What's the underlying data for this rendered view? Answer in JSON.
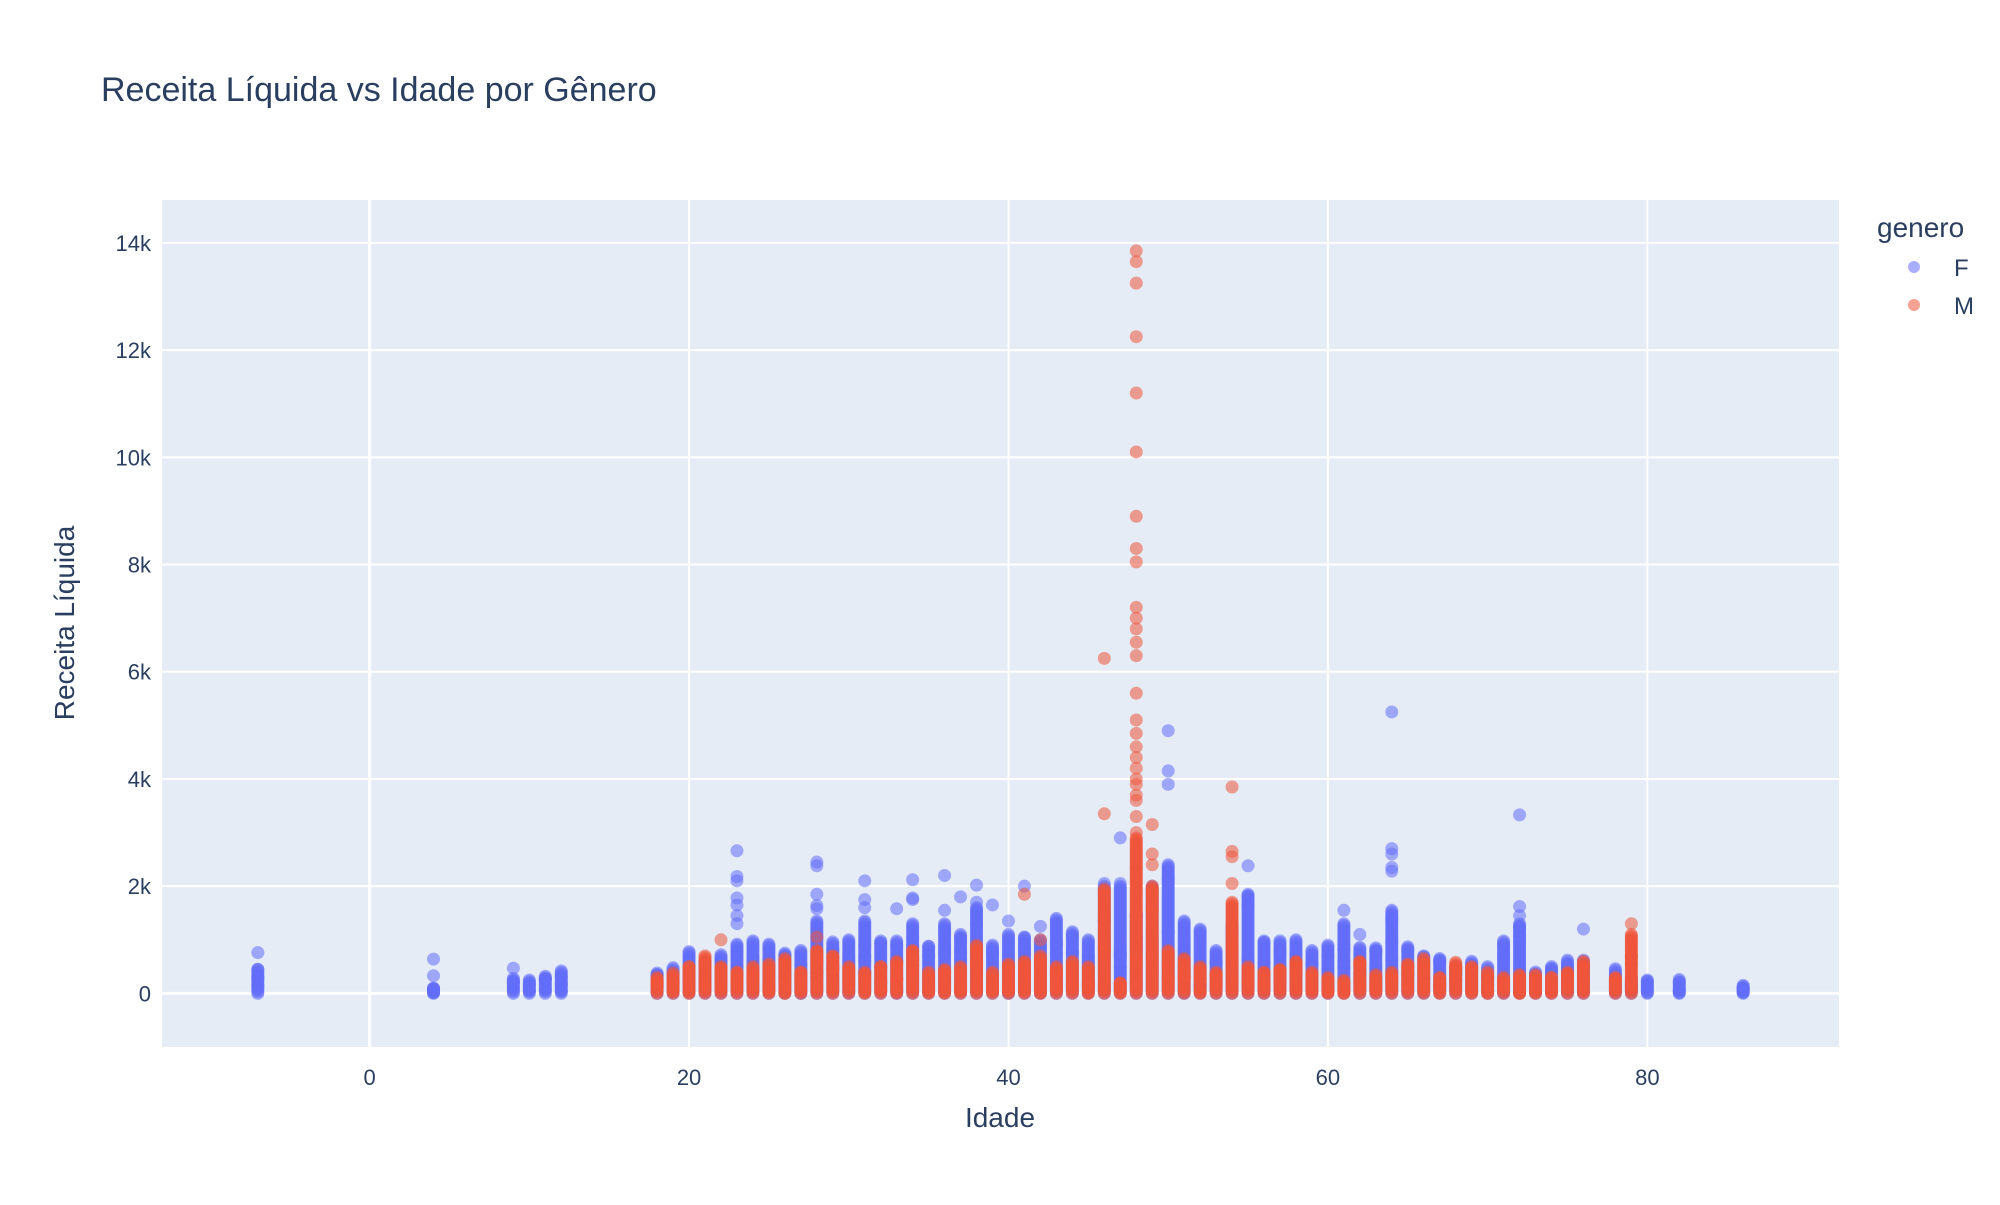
{
  "chart_data": {
    "type": "scatter",
    "title": "Receita Líquida vs Idade por Gênero",
    "xlabel": "Idade",
    "ylabel": "Receita Líquida",
    "xlim": [
      -13,
      92
    ],
    "ylim": [
      -1000,
      14800
    ],
    "x_ticks": [
      0,
      20,
      40,
      60,
      80
    ],
    "y_ticks": [
      0,
      2000,
      4000,
      6000,
      8000,
      10000,
      12000,
      14000
    ],
    "y_tick_labels": [
      "0",
      "2k",
      "4k",
      "6k",
      "8k",
      "10k",
      "12k",
      "14k"
    ],
    "grid": true,
    "legend": {
      "title": "genero",
      "placement": "top-right-outside"
    },
    "series": [
      {
        "name": "F",
        "color": "#636efa",
        "groups": [
          {
            "x": -7,
            "max": 450,
            "out": [
              760
            ]
          },
          {
            "x": 4,
            "max": 100,
            "out": [
              330,
              640
            ]
          },
          {
            "x": 9,
            "max": 280,
            "out": [
              470
            ]
          },
          {
            "x": 10,
            "max": 250
          },
          {
            "x": 11,
            "max": 320
          },
          {
            "x": 12,
            "max": 420
          },
          {
            "x": 18,
            "max": 380
          },
          {
            "x": 19,
            "max": 480
          },
          {
            "x": 20,
            "max": 780
          },
          {
            "x": 21,
            "max": 600
          },
          {
            "x": 22,
            "max": 720
          },
          {
            "x": 23,
            "max": 920,
            "out": [
              1300,
              1450,
              1650,
              1780,
              2100,
              2180,
              2660
            ]
          },
          {
            "x": 24,
            "max": 980
          },
          {
            "x": 25,
            "max": 920
          },
          {
            "x": 26,
            "max": 750
          },
          {
            "x": 27,
            "max": 800
          },
          {
            "x": 28,
            "max": 1350,
            "out": [
              1580,
              1640,
              1850,
              2380,
              2450
            ]
          },
          {
            "x": 29,
            "max": 960
          },
          {
            "x": 30,
            "max": 1000
          },
          {
            "x": 31,
            "max": 1350,
            "out": [
              1600,
              1750,
              2100
            ]
          },
          {
            "x": 32,
            "max": 980
          },
          {
            "x": 33,
            "max": 980,
            "out": [
              1580
            ]
          },
          {
            "x": 34,
            "max": 1300,
            "out": [
              1750,
              1780,
              2120
            ]
          },
          {
            "x": 35,
            "max": 880
          },
          {
            "x": 36,
            "max": 1300,
            "out": [
              1550,
              2200
            ]
          },
          {
            "x": 37,
            "max": 1100,
            "out": [
              1800
            ]
          },
          {
            "x": 38,
            "max": 1600,
            "out": [
              1700,
              2020
            ]
          },
          {
            "x": 39,
            "max": 900,
            "out": [
              1650
            ]
          },
          {
            "x": 40,
            "max": 1100,
            "out": [
              1350
            ]
          },
          {
            "x": 41,
            "max": 1050,
            "out": [
              2000
            ]
          },
          {
            "x": 42,
            "max": 1000,
            "out": [
              1250
            ]
          },
          {
            "x": 43,
            "max": 1400
          },
          {
            "x": 44,
            "max": 1150
          },
          {
            "x": 45,
            "max": 1000
          },
          {
            "x": 46,
            "max": 2000,
            "out": [
              2050
            ]
          },
          {
            "x": 47,
            "max": 2000,
            "out": [
              2050,
              2900
            ]
          },
          {
            "x": 48,
            "max": 1500
          },
          {
            "x": 49,
            "max": 2000
          },
          {
            "x": 50,
            "max": 2400,
            "out": [
              3900,
              4150,
              4900
            ]
          },
          {
            "x": 51,
            "max": 1350
          },
          {
            "x": 52,
            "max": 1200
          },
          {
            "x": 53,
            "max": 800
          },
          {
            "x": 54,
            "max": 1300
          },
          {
            "x": 55,
            "max": 1850,
            "out": [
              2380
            ]
          },
          {
            "x": 56,
            "max": 980
          },
          {
            "x": 57,
            "max": 980
          },
          {
            "x": 58,
            "max": 1000
          },
          {
            "x": 59,
            "max": 800
          },
          {
            "x": 60,
            "max": 900
          },
          {
            "x": 61,
            "max": 1300,
            "out": [
              1550
            ]
          },
          {
            "x": 62,
            "max": 860,
            "out": [
              1100
            ]
          },
          {
            "x": 63,
            "max": 850
          },
          {
            "x": 64,
            "max": 1550,
            "out": [
              2280,
              2350,
              2600,
              2700,
              5250
            ]
          },
          {
            "x": 65,
            "max": 870
          },
          {
            "x": 66,
            "max": 700
          },
          {
            "x": 67,
            "max": 650
          },
          {
            "x": 68,
            "max": 500
          },
          {
            "x": 69,
            "max": 600
          },
          {
            "x": 70,
            "max": 500
          },
          {
            "x": 71,
            "max": 980
          },
          {
            "x": 72,
            "max": 1300,
            "out": [
              1450,
              1620,
              3330
            ]
          },
          {
            "x": 73,
            "max": 400
          },
          {
            "x": 74,
            "max": 500
          },
          {
            "x": 75,
            "max": 620
          },
          {
            "x": 76,
            "max": 620,
            "out": [
              1200
            ]
          },
          {
            "x": 78,
            "max": 460
          },
          {
            "x": 79,
            "max": 300
          },
          {
            "x": 80,
            "max": 250
          },
          {
            "x": 82,
            "max": 260
          },
          {
            "x": 86,
            "max": 150
          }
        ]
      },
      {
        "name": "M",
        "color": "#ef553b",
        "groups": [
          {
            "x": 18,
            "max": 300
          },
          {
            "x": 19,
            "max": 380
          },
          {
            "x": 20,
            "max": 500
          },
          {
            "x": 21,
            "max": 700
          },
          {
            "x": 22,
            "max": 500,
            "out": [
              1000
            ]
          },
          {
            "x": 23,
            "max": 400
          },
          {
            "x": 24,
            "max": 500
          },
          {
            "x": 25,
            "max": 550
          },
          {
            "x": 26,
            "max": 650
          },
          {
            "x": 27,
            "max": 400
          },
          {
            "x": 28,
            "max": 800,
            "out": [
              1050
            ]
          },
          {
            "x": 29,
            "max": 700
          },
          {
            "x": 30,
            "max": 500
          },
          {
            "x": 31,
            "max": 400
          },
          {
            "x": 32,
            "max": 500
          },
          {
            "x": 33,
            "max": 600
          },
          {
            "x": 34,
            "max": 800
          },
          {
            "x": 35,
            "max": 400
          },
          {
            "x": 36,
            "max": 450
          },
          {
            "x": 37,
            "max": 500
          },
          {
            "x": 38,
            "max": 900
          },
          {
            "x": 39,
            "max": 400
          },
          {
            "x": 40,
            "max": 550
          },
          {
            "x": 41,
            "max": 600,
            "out": [
              1850
            ]
          },
          {
            "x": 42,
            "max": 700,
            "out": [
              1000
            ]
          },
          {
            "x": 43,
            "max": 500
          },
          {
            "x": 44,
            "max": 600
          },
          {
            "x": 45,
            "max": 500
          },
          {
            "x": 46,
            "max": 1950,
            "out": [
              3350,
              6250
            ]
          },
          {
            "x": 47,
            "max": 200
          },
          {
            "x": 48,
            "max": 2900,
            "out": [
              3000,
              3300,
              3600,
              3700,
              3900,
              4000,
              4200,
              4400,
              4600,
              4850,
              5100,
              5600,
              6300,
              6550,
              6800,
              7000,
              7200,
              8050,
              8300,
              8900,
              10100,
              11200,
              12250,
              13250,
              13650,
              13850
            ]
          },
          {
            "x": 49,
            "max": 2000,
            "out": [
              2400,
              2600,
              3150
            ]
          },
          {
            "x": 50,
            "max": 800
          },
          {
            "x": 51,
            "max": 650
          },
          {
            "x": 52,
            "max": 500
          },
          {
            "x": 53,
            "max": 400
          },
          {
            "x": 54,
            "max": 1700,
            "out": [
              2050,
              2550,
              2650,
              3850
            ]
          },
          {
            "x": 55,
            "max": 500
          },
          {
            "x": 56,
            "max": 400
          },
          {
            "x": 57,
            "max": 450
          },
          {
            "x": 58,
            "max": 600
          },
          {
            "x": 59,
            "max": 400
          },
          {
            "x": 60,
            "max": 300
          },
          {
            "x": 61,
            "max": 250
          },
          {
            "x": 62,
            "max": 600
          },
          {
            "x": 63,
            "max": 350
          },
          {
            "x": 64,
            "max": 400
          },
          {
            "x": 65,
            "max": 550
          },
          {
            "x": 66,
            "max": 650
          },
          {
            "x": 67,
            "max": 300
          },
          {
            "x": 68,
            "max": 580
          },
          {
            "x": 69,
            "max": 500
          },
          {
            "x": 70,
            "max": 400
          },
          {
            "x": 71,
            "max": 300
          },
          {
            "x": 72,
            "max": 350
          },
          {
            "x": 73,
            "max": 350
          },
          {
            "x": 74,
            "max": 300
          },
          {
            "x": 75,
            "max": 400
          },
          {
            "x": 76,
            "max": 600
          },
          {
            "x": 78,
            "max": 300
          },
          {
            "x": 79,
            "max": 1100,
            "out": [
              1300
            ]
          }
        ]
      }
    ]
  }
}
